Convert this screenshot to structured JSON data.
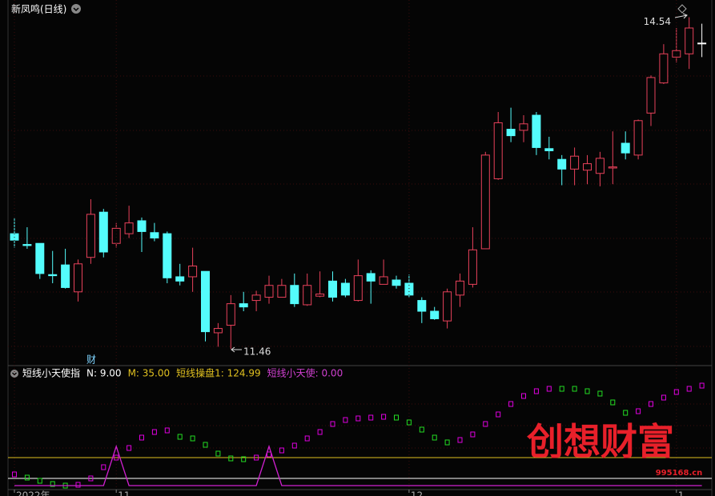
{
  "chart_data": [
    {
      "type": "candlestick",
      "title": "新凤鸣(日线)",
      "marker_text": "财",
      "categories": [
        "2022年",
        null,
        null,
        null,
        null,
        null,
        null,
        null,
        "11",
        null,
        null,
        null,
        null,
        null,
        null,
        null,
        null,
        null,
        null,
        null,
        null,
        null,
        null,
        null,
        null,
        null,
        null,
        null,
        null,
        null,
        null,
        "12",
        null,
        null,
        null,
        null,
        null,
        null,
        null,
        null,
        null,
        null,
        null,
        null,
        null,
        null,
        null,
        null,
        null,
        null,
        null,
        null,
        "1",
        null,
        null
      ],
      "ohlc": [
        [
          12.53,
          12.68,
          12.4,
          12.47
        ],
        [
          12.43,
          12.59,
          12.39,
          12.42
        ],
        [
          12.44,
          12.44,
          12.11,
          12.16
        ],
        [
          12.15,
          12.37,
          12.07,
          12.14
        ],
        [
          12.24,
          12.39,
          12.02,
          12.03
        ],
        [
          11.99,
          12.29,
          11.9,
          12.25
        ],
        [
          12.31,
          12.85,
          12.25,
          12.71
        ],
        [
          12.73,
          12.76,
          12.31,
          12.36
        ],
        [
          12.44,
          12.63,
          12.4,
          12.58
        ],
        [
          12.53,
          12.79,
          12.49,
          12.63
        ],
        [
          12.65,
          12.68,
          12.36,
          12.55
        ],
        [
          12.54,
          12.63,
          12.46,
          12.49
        ],
        [
          12.53,
          12.55,
          12.07,
          12.12
        ],
        [
          12.13,
          12.25,
          12.05,
          12.09
        ],
        [
          12.13,
          12.4,
          11.99,
          12.23
        ],
        [
          12.18,
          12.18,
          11.53,
          11.62
        ],
        [
          11.61,
          11.7,
          11.48,
          11.65
        ],
        [
          11.68,
          11.96,
          11.46,
          11.88
        ],
        [
          11.88,
          11.99,
          11.81,
          11.85
        ],
        [
          11.91,
          12.0,
          11.81,
          11.96
        ],
        [
          11.94,
          12.14,
          11.88,
          12.05
        ],
        [
          11.94,
          12.11,
          11.94,
          12.05
        ],
        [
          12.05,
          12.16,
          11.85,
          11.88
        ],
        [
          11.87,
          12.16,
          11.86,
          12.05
        ],
        [
          11.95,
          12.18,
          11.94,
          11.97
        ],
        [
          12.09,
          12.18,
          11.9,
          11.94
        ],
        [
          12.07,
          12.11,
          11.94,
          11.96
        ],
        [
          11.91,
          12.29,
          11.9,
          12.14
        ],
        [
          12.16,
          12.19,
          11.88,
          12.09
        ],
        [
          12.06,
          12.29,
          12.06,
          12.13
        ],
        [
          12.1,
          12.14,
          12.02,
          12.05
        ],
        [
          12.07,
          12.15,
          11.94,
          11.96
        ],
        [
          11.91,
          11.94,
          11.7,
          11.81
        ],
        [
          11.81,
          11.85,
          11.73,
          11.74
        ],
        [
          11.72,
          12.02,
          11.65,
          11.99
        ],
        [
          11.96,
          12.16,
          11.85,
          12.09
        ],
        [
          12.06,
          12.59,
          12.03,
          12.38
        ],
        [
          12.39,
          13.29,
          12.39,
          13.26
        ],
        [
          13.04,
          13.66,
          13.03,
          13.56
        ],
        [
          13.5,
          13.7,
          13.38,
          13.44
        ],
        [
          13.49,
          13.63,
          13.38,
          13.55
        ],
        [
          13.63,
          13.66,
          13.26,
          13.33
        ],
        [
          13.32,
          13.43,
          13.22,
          13.3
        ],
        [
          13.22,
          13.26,
          12.98,
          13.13
        ],
        [
          13.13,
          13.33,
          12.98,
          13.25
        ],
        [
          13.12,
          13.26,
          12.99,
          13.18
        ],
        [
          13.09,
          13.29,
          12.97,
          13.23
        ],
        [
          13.14,
          13.48,
          12.99,
          13.15
        ],
        [
          13.37,
          13.48,
          13.22,
          13.28
        ],
        [
          13.26,
          13.59,
          13.22,
          13.58
        ],
        [
          13.65,
          14.0,
          13.53,
          13.98
        ],
        [
          13.93,
          14.29,
          13.92,
          14.2
        ],
        [
          14.17,
          14.44,
          14.12,
          14.23
        ],
        [
          14.2,
          14.54,
          14.06,
          14.44
        ],
        [
          14.3,
          14.48,
          14.17,
          14.3
        ]
      ],
      "up_color": "#e8415a",
      "down_color": "#54fcfc",
      "flat_color": "#ffffff",
      "ylim": [
        11.32,
        14.7
      ],
      "high_label": 14.54,
      "low_label": 11.46
    },
    {
      "type": "indicator",
      "title": "短线小天使指",
      "params": [
        {
          "label": "N: 9.00",
          "value": 9,
          "color": "#ffffff"
        },
        {
          "label": "M: 35.00",
          "value": 35,
          "color": "#e0c020"
        }
      ],
      "series": [
        {
          "label": "短线操盘1: 124.99",
          "color": "#e000e0",
          "down_color": "#22dd22",
          "style": "markers",
          "values": [
            14,
            10,
            6,
            2,
            0,
            1,
            9,
            23,
            35,
            47,
            60,
            67,
            69,
            61,
            59,
            51,
            40,
            34,
            33,
            35,
            39,
            44,
            50,
            59,
            67,
            77,
            82,
            84,
            85,
            86,
            85,
            79,
            70,
            60,
            54,
            57,
            64,
            77,
            89,
            102,
            112,
            118,
            121,
            121,
            121,
            118,
            115,
            104,
            91,
            93,
            102,
            110,
            117,
            121,
            124.99
          ]
        },
        {
          "label": "短线小天使: 0.00",
          "color": "#d020d0",
          "style": "line",
          "values": [
            0,
            0,
            0,
            0,
            0,
            0,
            0,
            0,
            49,
            0,
            0,
            0,
            0,
            0,
            0,
            0,
            0,
            0,
            0,
            0,
            49,
            0,
            0,
            0,
            0,
            0,
            0,
            0,
            0,
            0,
            0,
            0,
            0,
            0,
            0,
            0,
            0,
            0,
            0,
            0,
            0,
            0,
            0,
            0,
            0,
            0,
            0,
            0,
            0,
            0,
            0,
            0,
            0,
            0,
            0
          ]
        }
      ],
      "ylim": [
        0,
        129
      ]
    }
  ],
  "watermark": {
    "title": "创想财富",
    "url": "995168.cn"
  }
}
